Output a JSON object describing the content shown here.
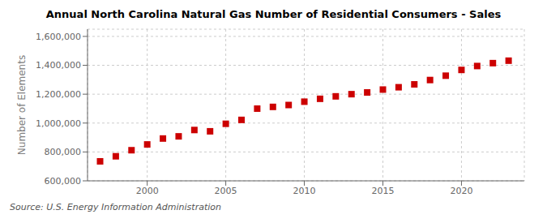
{
  "chart_data": {
    "type": "scatter",
    "title": "Annual North Carolina Natural Gas Number of Residential Consumers - Sales",
    "y_label": "Number of Elements",
    "annotation": "Source: U.S. Energy Information Administration",
    "x": [
      1997,
      1998,
      1999,
      2000,
      2001,
      2002,
      2003,
      2004,
      2005,
      2006,
      2007,
      2008,
      2009,
      2010,
      2011,
      2012,
      2013,
      2014,
      2015,
      2016,
      2017,
      2018,
      2019,
      2020,
      2021,
      2022,
      2023
    ],
    "values": [
      735000,
      770000,
      812000,
      852000,
      893000,
      908000,
      952000,
      943000,
      995000,
      1022000,
      1100000,
      1112000,
      1125000,
      1148000,
      1168000,
      1185000,
      1200000,
      1212000,
      1232000,
      1248000,
      1268000,
      1298000,
      1328000,
      1368000,
      1395000,
      1415000,
      1432000
    ],
    "color": "#cc0000",
    "marker": "square",
    "xlim": [
      1996.2,
      2024.0
    ],
    "ylim": [
      600000,
      1650000
    ],
    "xticks": [
      2000,
      2005,
      2010,
      2015,
      2020
    ],
    "yticks": [
      {
        "value": 600000,
        "label": "600,000"
      },
      {
        "value": 800000,
        "label": "800,000"
      },
      {
        "value": 1000000,
        "label": "1,000,000"
      },
      {
        "value": 1200000,
        "label": "1,200,000"
      },
      {
        "value": 1400000,
        "label": "1,400,000"
      },
      {
        "value": 1600000,
        "label": "1,600,000"
      }
    ],
    "grid": true
  }
}
